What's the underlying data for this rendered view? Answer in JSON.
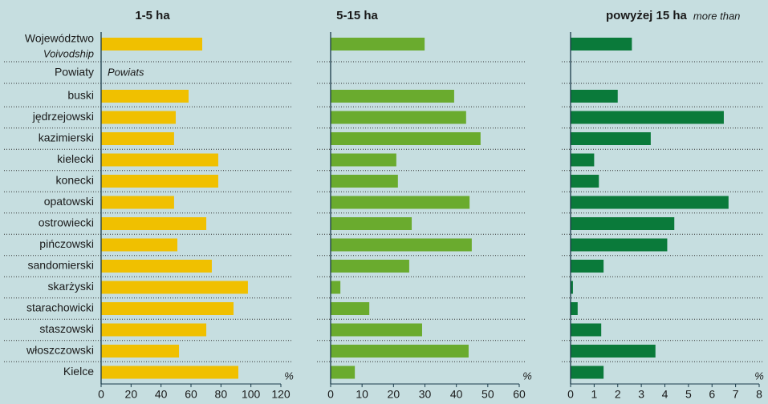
{
  "chart_data": {
    "type": "bar",
    "orientation": "horizontal",
    "categories": [
      "Województwo",
      "Powiaty",
      "buski",
      "jędrzejowski",
      "kazimierski",
      "kielecki",
      "konecki",
      "opatowski",
      "ostrowiecki",
      "pińczowski",
      "sandomierski",
      "skarżyski",
      "starachowicki",
      "staszowski",
      "włoszczowski",
      "Kielce"
    ],
    "annotations": [
      "Voivodship",
      "Powiats"
    ],
    "series": [
      {
        "name": "1-5 ha",
        "color": "#f0c000",
        "xlim": [
          0,
          120
        ],
        "xticks": [
          0,
          20,
          40,
          60,
          80,
          100,
          120
        ],
        "axis_label": "%",
        "values": [
          67.5,
          null,
          58.4,
          49.8,
          48.7,
          78.2,
          78.2,
          48.7,
          70.2,
          50.9,
          73.9,
          98,
          88.4,
          70.2,
          52,
          91.6
        ]
      },
      {
        "name": "5-15 ha",
        "color": "#6aab2e",
        "xlim": [
          0,
          60
        ],
        "xticks": [
          0,
          10,
          20,
          30,
          40,
          50,
          60
        ],
        "axis_label": "%",
        "values": [
          29.9,
          null,
          39.3,
          43.1,
          47.7,
          20.9,
          21.4,
          44.2,
          25.8,
          44.9,
          25,
          3.1,
          12.3,
          29.1,
          43.9,
          7.7
        ]
      },
      {
        "name": "powyżej 15 ha",
        "subtitle": "more than",
        "color": "#0a7a3a",
        "xlim": [
          0,
          8
        ],
        "xticks": [
          0,
          1,
          2,
          3,
          4,
          5,
          6,
          7,
          8
        ],
        "axis_label": "%",
        "values": [
          2.6,
          null,
          2.0,
          6.5,
          3.4,
          1.0,
          1.2,
          6.7,
          4.4,
          4.1,
          1.4,
          0.1,
          0.3,
          1.3,
          3.6,
          1.4
        ]
      }
    ]
  }
}
